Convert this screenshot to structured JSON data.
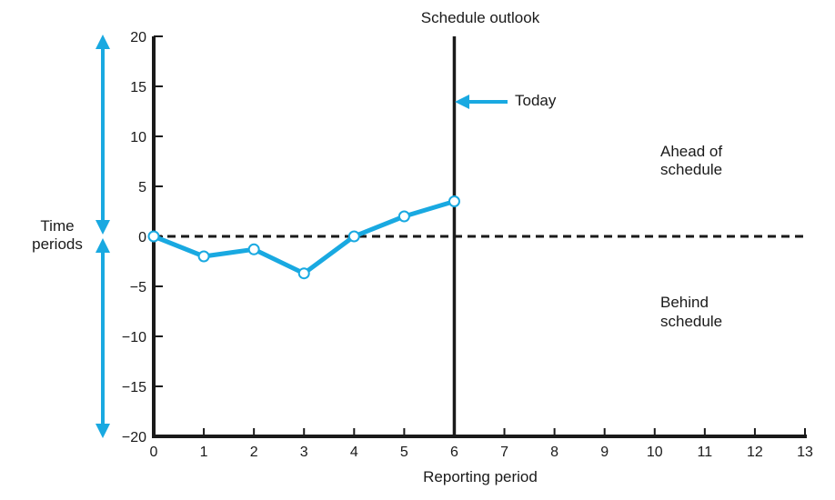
{
  "chart_data": {
    "type": "line",
    "title": "Schedule outlook",
    "xlabel": "Reporting period",
    "ylabel": "Time periods",
    "xlim": [
      0,
      13
    ],
    "ylim": [
      -20,
      20
    ],
    "x_ticks": [
      "0",
      "1",
      "2",
      "3",
      "4",
      "5",
      "6",
      "7",
      "8",
      "9",
      "10",
      "11",
      "12",
      "13"
    ],
    "y_ticks": [
      {
        "value": 20,
        "label": "20"
      },
      {
        "value": 15,
        "label": "15"
      },
      {
        "value": 10,
        "label": "10"
      },
      {
        "value": 5,
        "label": "5"
      },
      {
        "value": 0,
        "label": "0"
      },
      {
        "value": -5,
        "label": "−5"
      },
      {
        "value": -10,
        "label": "−10"
      },
      {
        "value": -15,
        "label": "−15"
      },
      {
        "value": -20,
        "label": "−20"
      }
    ],
    "grid": false,
    "series": [
      {
        "x": [
          0,
          1,
          2,
          3,
          4,
          5,
          6
        ],
        "values": [
          0,
          -2,
          -1.3,
          -3.7,
          0,
          2,
          3.5
        ]
      }
    ],
    "today_x": 6,
    "baseline_y": 0,
    "annotations": {
      "today": "Today",
      "ahead_line1": "Ahead of",
      "ahead_line2": "schedule",
      "behind_line1": "Behind",
      "behind_line2": "schedule"
    },
    "colors": {
      "series": "#19a9e1",
      "axis": "#1a1a1a",
      "text": "#1a1a1a"
    }
  }
}
